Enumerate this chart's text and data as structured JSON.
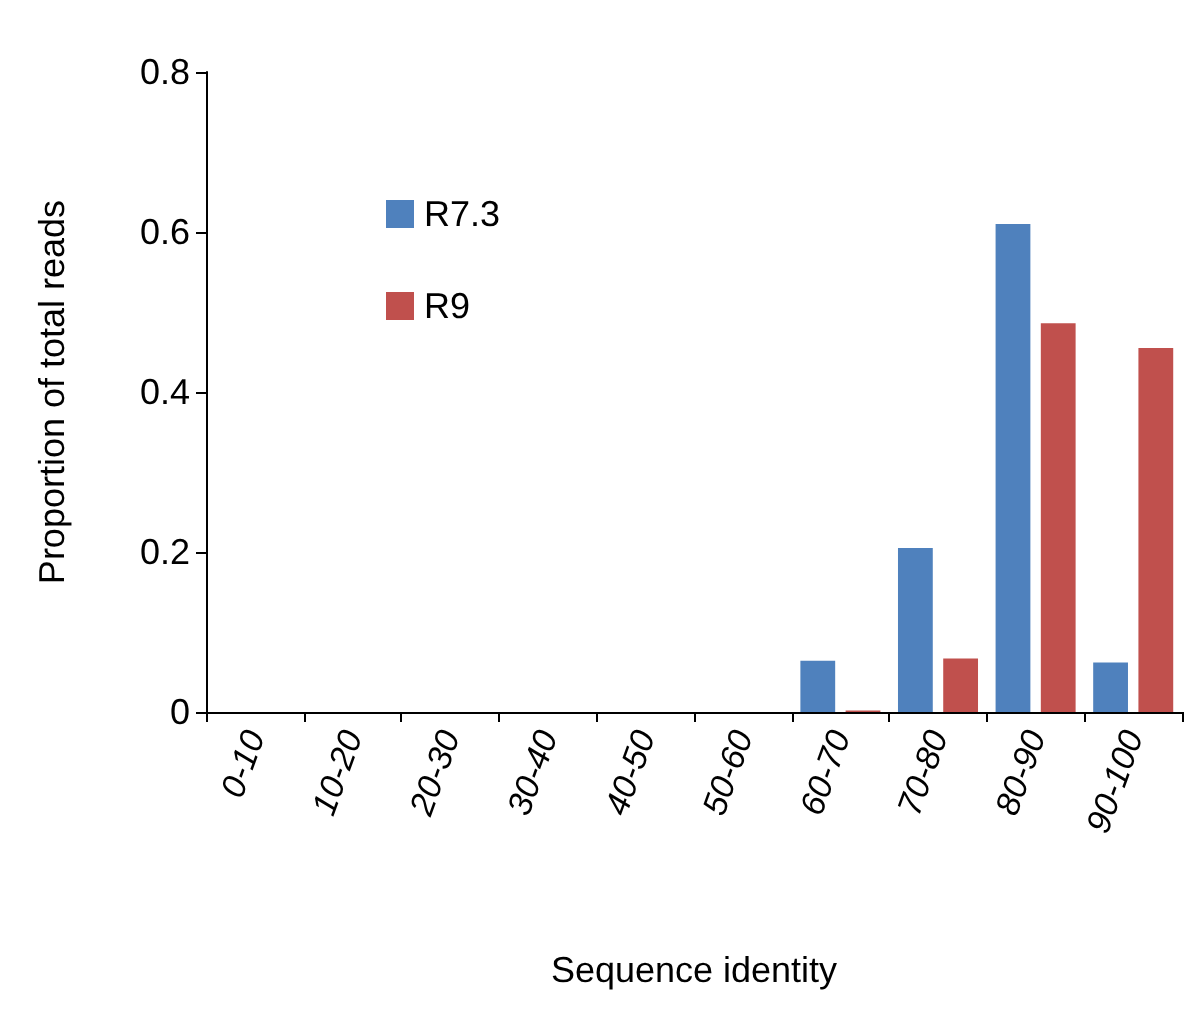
{
  "chart_data": {
    "type": "bar",
    "xlabel": "Sequence identity",
    "ylabel": "Proportion of total reads",
    "categories": [
      "0-10",
      "10-20",
      "20-30",
      "30-40",
      "40-50",
      "50-60",
      "60-70",
      "70-80",
      "80-90",
      "90-100"
    ],
    "series": [
      {
        "name": "R7.3",
        "color": "#4f81bd",
        "values": [
          0,
          0,
          0,
          0,
          0,
          0,
          0.064,
          0.205,
          0.61,
          0.062
        ]
      },
      {
        "name": "R9",
        "color": "#c0504d",
        "values": [
          0,
          0,
          0,
          0,
          0,
          0,
          0.002,
          0.067,
          0.486,
          0.455
        ]
      }
    ],
    "ylim": [
      0,
      0.8
    ],
    "yticks": [
      0,
      0.2,
      0.4,
      0.6,
      0.8
    ],
    "grid": false,
    "legend": "top left"
  }
}
